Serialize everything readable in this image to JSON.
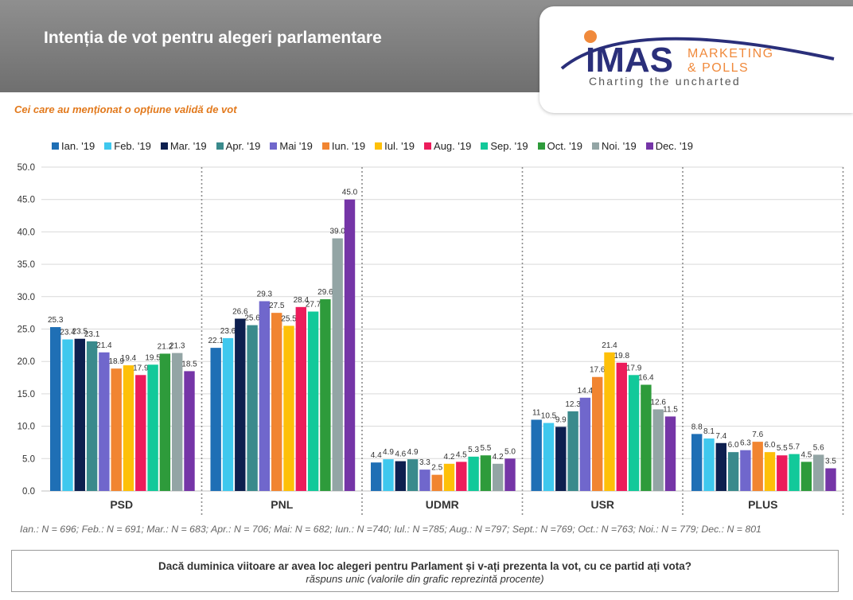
{
  "header": {
    "title": "Intenția de vot pentru alegeri parlamentare",
    "subtitle": "Cei care au menționat o opțiune validă de vot"
  },
  "logo": {
    "brand": "IMAS",
    "line1": "MARKETING",
    "line2": "& POLLS",
    "tagline": "Charting the uncharted",
    "colors": {
      "navy": "#2a2f7a",
      "orange": "#f08a3c",
      "gray": "#555555"
    }
  },
  "chart_data": {
    "type": "bar",
    "categories": [
      "PSD",
      "PNL",
      "UDMR",
      "USR",
      "PLUS"
    ],
    "ylim": [
      0,
      50
    ],
    "yticks": [
      "0.0",
      "5.0",
      "10.0",
      "15.0",
      "20.0",
      "25.0",
      "30.0",
      "35.0",
      "40.0",
      "45.0",
      "50.0"
    ],
    "grid": true,
    "legend_position": "top",
    "series": [
      {
        "name": "Ian. '19",
        "color": "#1f6fb5",
        "values": [
          25.3,
          22.1,
          4.4,
          11,
          8.8
        ],
        "labels": [
          "25.3",
          "22.1",
          "4.4",
          "11",
          "8.8"
        ]
      },
      {
        "name": "Feb. '19",
        "color": "#3fc8ee",
        "values": [
          23.4,
          23.6,
          4.9,
          10.5,
          8.1
        ],
        "labels": [
          "23.4",
          "23.6",
          "4.9",
          "10.5",
          "8.1"
        ]
      },
      {
        "name": "Mar. '19",
        "color": "#0d1f4f",
        "values": [
          23.5,
          26.6,
          4.6,
          9.9,
          7.4
        ],
        "labels": [
          "23.5",
          "26.6",
          "4.6",
          "9.9",
          "7.4"
        ]
      },
      {
        "name": "Apr. '19",
        "color": "#3a8a8c",
        "values": [
          23.1,
          25.6,
          4.9,
          12.3,
          6.0
        ],
        "labels": [
          "23.1",
          "25.6",
          "4.9",
          "12.3",
          "6.0"
        ]
      },
      {
        "name": "Mai '19",
        "color": "#7067cc",
        "values": [
          21.4,
          29.3,
          3.3,
          14.4,
          6.3
        ],
        "labels": [
          "21.4",
          "29.3",
          "3.3",
          "14.4",
          "6.3"
        ]
      },
      {
        "name": "Iun. '19",
        "color": "#f18531",
        "values": [
          18.9,
          27.5,
          2.5,
          17.6,
          7.6
        ],
        "labels": [
          "18.9",
          "27.5",
          "2.5",
          "17.6",
          "7.6"
        ]
      },
      {
        "name": "Iul. '19",
        "color": "#fec008",
        "values": [
          19.4,
          25.5,
          4.2,
          21.4,
          6.0
        ],
        "labels": [
          "19.4",
          "25.5",
          "4.2",
          "21.4",
          "6.0"
        ]
      },
      {
        "name": "Aug. '19",
        "color": "#ec1c5b",
        "values": [
          17.9,
          28.4,
          4.5,
          19.8,
          5.5
        ],
        "labels": [
          "17.9",
          "28.4",
          "4.5",
          "19.8",
          "5.5"
        ]
      },
      {
        "name": "Sep. '19",
        "color": "#12c99a",
        "values": [
          19.5,
          27.7,
          5.3,
          17.9,
          5.7
        ],
        "labels": [
          "19.5",
          "27.7",
          "5.3",
          "17.9",
          "5.7"
        ]
      },
      {
        "name": "Oct. '19",
        "color": "#2e9b3b",
        "values": [
          21.2,
          29.6,
          5.5,
          16.4,
          4.5
        ],
        "labels": [
          "21.2",
          "29.6",
          "5.5",
          "16.4",
          "4.5"
        ]
      },
      {
        "name": "Noi. '19",
        "color": "#93a5a5",
        "values": [
          21.3,
          39.0,
          4.2,
          12.6,
          5.6
        ],
        "labels": [
          "21.3",
          "39.0",
          "4.2",
          "12.6",
          "5.6"
        ]
      },
      {
        "name": "Dec. '19",
        "color": "#7535a7",
        "values": [
          18.5,
          45.0,
          5.0,
          11.5,
          3.5
        ],
        "labels": [
          "18.5",
          "45.0",
          "5.0",
          "11.5",
          "3.5"
        ]
      }
    ]
  },
  "footnote": "Ian.: N = 696; Feb.: N = 691; Mar.: N = 683; Apr.: N = 706; Mai: N = 682; Iun.: N =740; Iul.: N =785; Aug.: N =797; Sept.: N =769; Oct.: N =763; Noi.: N = 779; Dec.: N = 801",
  "question": {
    "text": "Dacă duminica viitoare ar avea loc alegeri pentru Parlament și v-ați prezenta la vot, cu ce partid ați vota?",
    "note": "răspuns unic (valorile din grafic reprezintă procente)"
  }
}
